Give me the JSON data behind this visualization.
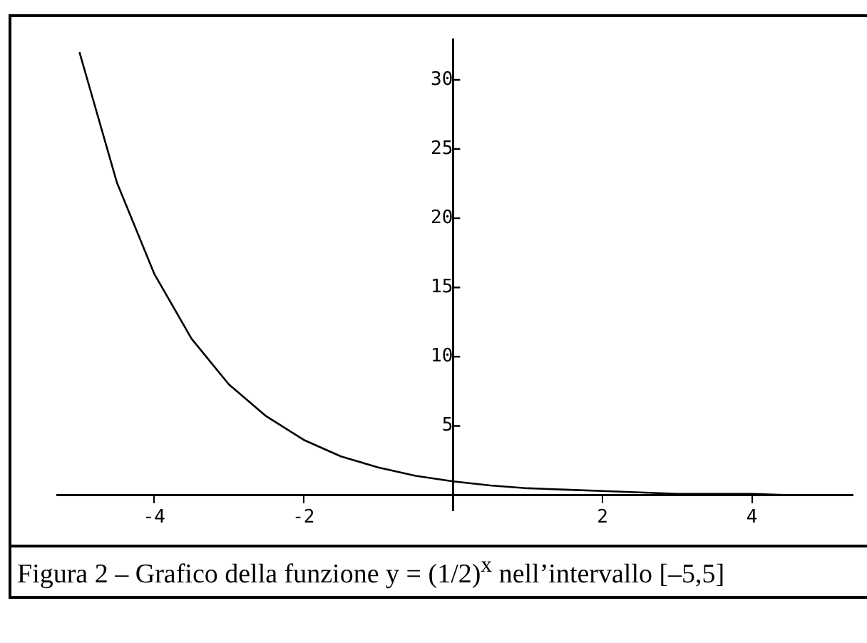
{
  "chart_data": {
    "type": "line",
    "x": [
      -5,
      -4.5,
      -4,
      -3.5,
      -3,
      -2.5,
      -2,
      -1.5,
      -1,
      -0.5,
      0,
      0.5,
      1,
      1.5,
      2,
      2.5,
      3,
      3.5,
      4,
      4.5,
      5
    ],
    "series": [
      {
        "color": "#000000",
        "values": [
          32,
          22.6,
          16,
          11.3,
          8,
          5.7,
          4,
          2.8,
          2,
          1.4,
          1,
          0.7,
          0.5,
          0.4,
          0.3,
          0.2,
          0.1,
          0.1,
          0.1,
          0,
          0
        ]
      }
    ],
    "xlim": [
      -5.3,
      5.35
    ],
    "ylim": [
      -1.1,
      32.9
    ],
    "xticks": [
      -4,
      -2,
      2,
      4
    ],
    "yticks": [
      5,
      10,
      15,
      20,
      25,
      30
    ],
    "grid": false,
    "legend": false,
    "marker": "none",
    "line_style": "solid",
    "annotations": [
      "Figura 2 – Grafico della funzione y = (1/2)$^{x}$ nell’intervallo [–5,5]"
    ]
  }
}
